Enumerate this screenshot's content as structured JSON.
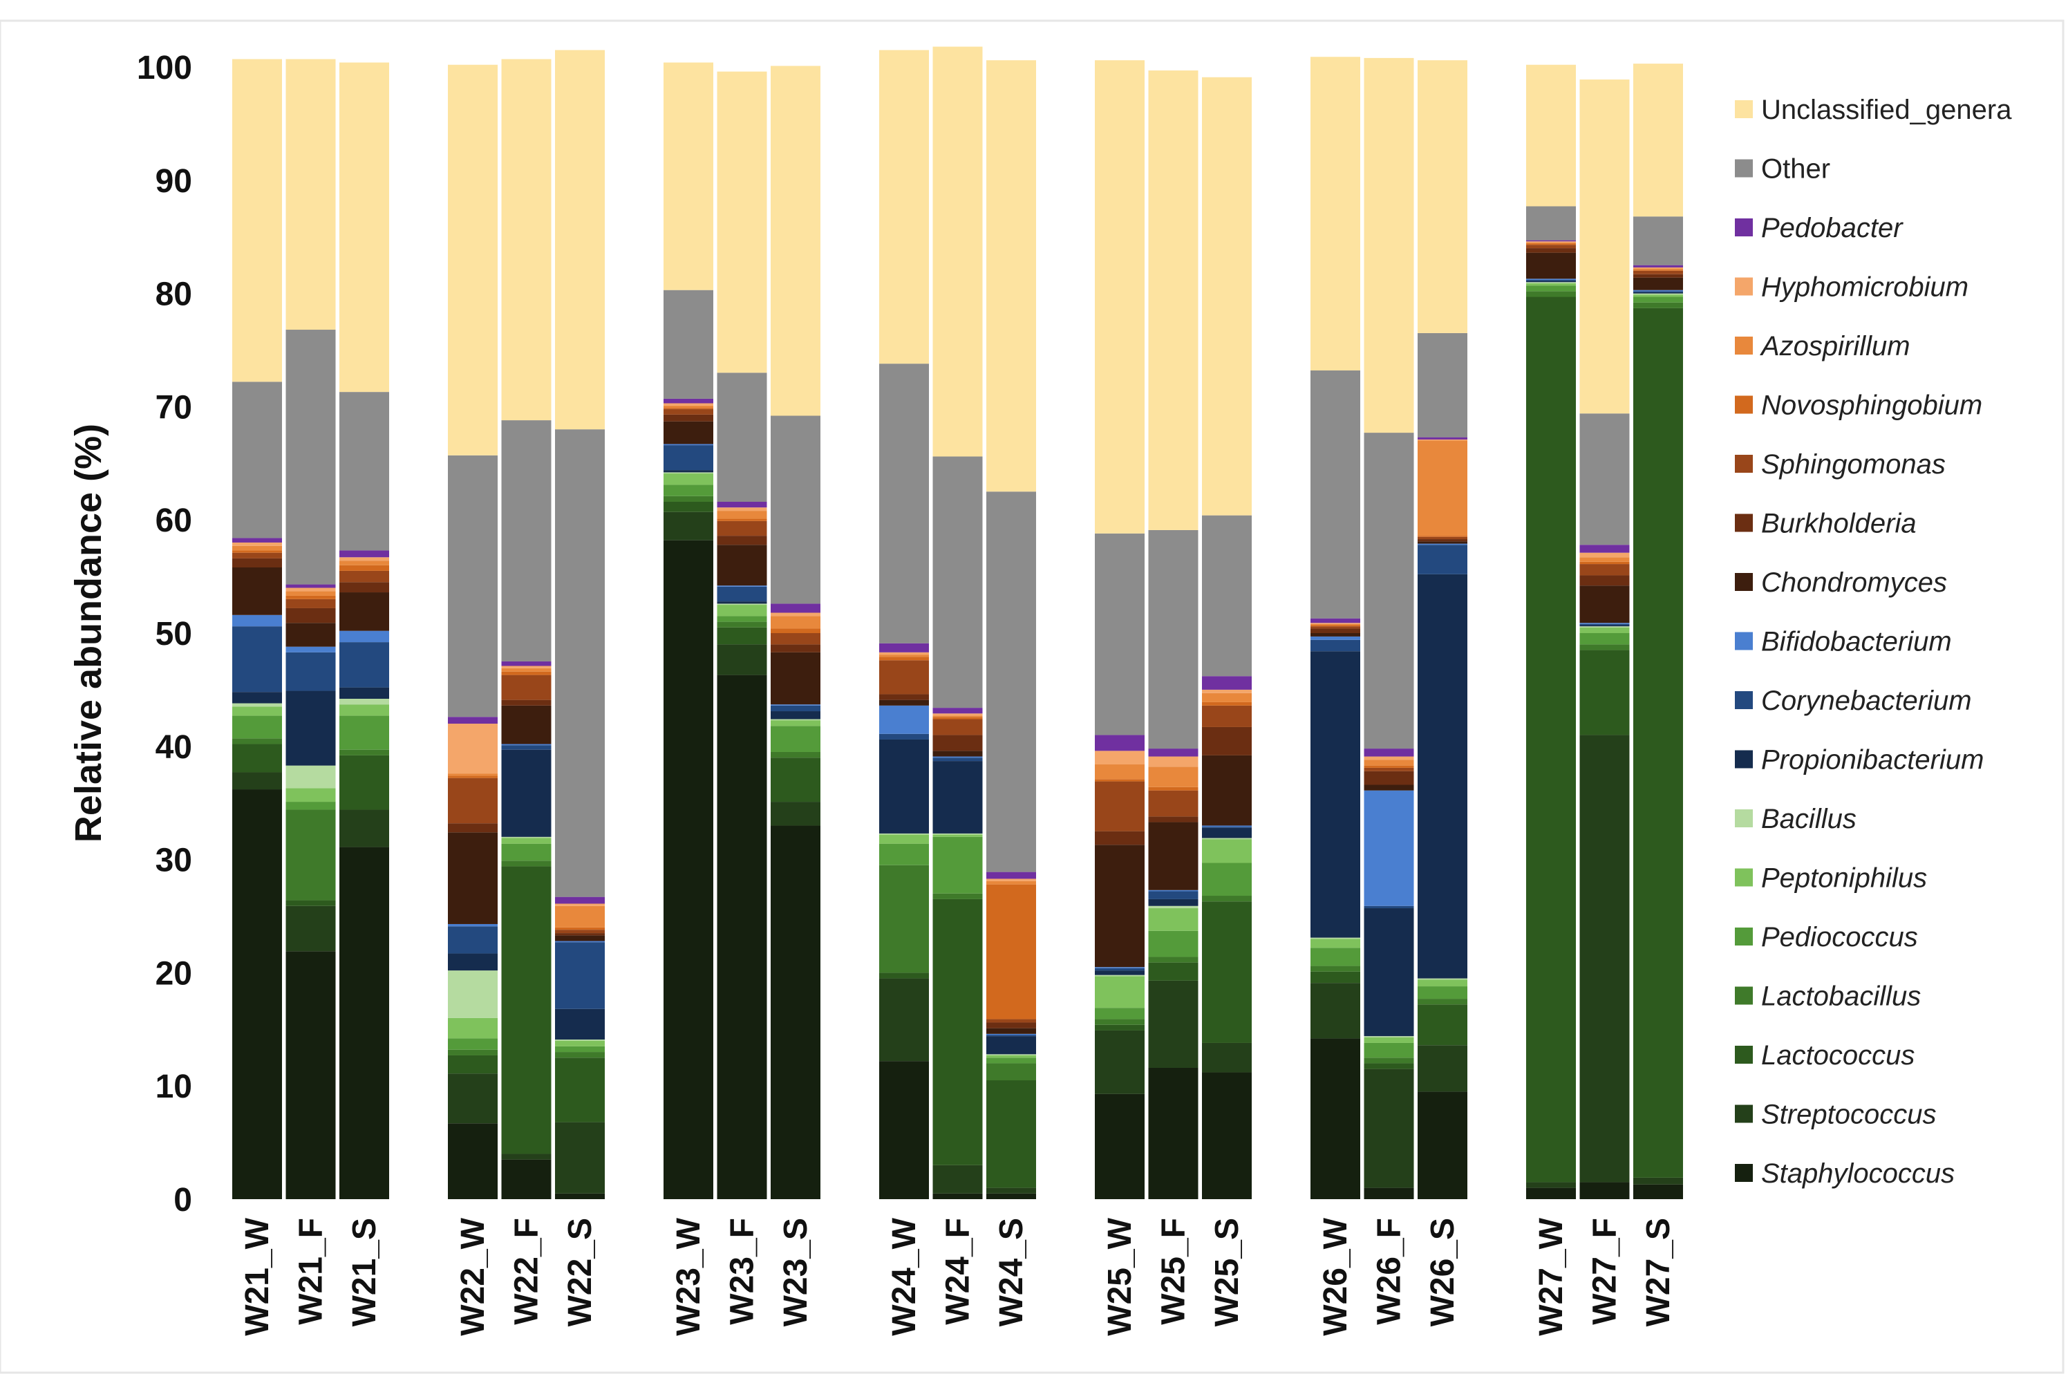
{
  "chart_data": {
    "type": "bar",
    "stacked": true,
    "ylabel": "Relative abundance (%)",
    "ylim": [
      0,
      100
    ],
    "yticks": [
      0,
      10,
      20,
      30,
      40,
      50,
      60,
      70,
      80,
      90,
      100
    ],
    "grid": false,
    "legend_position": "right",
    "categories": [
      "W21_W",
      "W21_F",
      "W21_S",
      "W22_W",
      "W22_F",
      "W22_S",
      "W23_W",
      "W23_F",
      "W23_S",
      "W24_W",
      "W24_F",
      "W24_S",
      "W25_W",
      "W25_F",
      "W25_S",
      "W26_W",
      "W26_F",
      "W26_S",
      "W27_W",
      "W27_F",
      "W27_S"
    ],
    "groups": [
      [
        "W21_W",
        "W21_F",
        "W21_S"
      ],
      [
        "W22_W",
        "W22_F",
        "W22_S"
      ],
      [
        "W23_W",
        "W23_F",
        "W23_S"
      ],
      [
        "W24_W",
        "W24_F",
        "W24_S"
      ],
      [
        "W25_W",
        "W25_F",
        "W25_S"
      ],
      [
        "W26_W",
        "W26_F",
        "W26_S"
      ],
      [
        "W27_W",
        "W27_F",
        "W27_S"
      ]
    ],
    "series": [
      {
        "name": "Staphylococcus",
        "italic": true,
        "color": "#15200f",
        "values": [
          36.2,
          21.9,
          31.1,
          6.7,
          3.5,
          0.5,
          58.2,
          46.3,
          33.0,
          12.2,
          0.5,
          0.5,
          9.3,
          11.6,
          11.2,
          14.2,
          1.0,
          9.5,
          1.0,
          1.5,
          1.3
        ]
      },
      {
        "name": "Streptococcus",
        "italic": true,
        "color": "#24401a",
        "values": [
          1.5,
          4.0,
          3.3,
          4.4,
          0.5,
          6.3,
          2.5,
          2.7,
          2.1,
          7.3,
          2.5,
          0.5,
          5.6,
          7.7,
          2.6,
          4.9,
          10.5,
          4.1,
          0.5,
          39.5,
          0.6
        ]
      },
      {
        "name": "Lactococcus",
        "italic": true,
        "color": "#2d5a1e",
        "values": [
          2.5,
          0.5,
          4.8,
          1.6,
          25.4,
          5.7,
          0.9,
          1.5,
          3.9,
          0.5,
          23.5,
          9.5,
          0.5,
          1.6,
          12.5,
          1.0,
          0.5,
          3.6,
          78.2,
          7.5,
          76.8
        ]
      },
      {
        "name": "Lactobacillus",
        "italic": true,
        "color": "#3f7a2a",
        "values": [
          0.5,
          8.0,
          0.5,
          0.5,
          0.5,
          0.5,
          0.5,
          0.5,
          0.5,
          9.5,
          0.5,
          1.5,
          0.5,
          0.5,
          0.5,
          0.5,
          0.5,
          0.5,
          0.5,
          0.5,
          0.5
        ]
      },
      {
        "name": "Pediococcus",
        "italic": true,
        "color": "#549b3a",
        "values": [
          2.0,
          0.7,
          3.0,
          1.0,
          1.5,
          0.5,
          1.0,
          0.5,
          2.3,
          1.9,
          5.0,
          0.5,
          1.0,
          2.3,
          2.9,
          1.6,
          1.3,
          1.1,
          0.5,
          1.0,
          0.5
        ]
      },
      {
        "name": "Peptoniphilus",
        "italic": true,
        "color": "#7fc25c",
        "values": [
          0.8,
          1.2,
          1.0,
          1.8,
          0.5,
          0.5,
          1.0,
          1.0,
          0.5,
          0.8,
          0.2,
          0.2,
          2.8,
          2.0,
          2.1,
          0.8,
          0.5,
          0.6,
          0.2,
          0.5,
          0.2
        ]
      },
      {
        "name": "Bacillus",
        "italic": true,
        "color": "#b5dba0",
        "values": [
          0.3,
          2.0,
          0.5,
          4.2,
          0.1,
          0.1,
          0.1,
          0.1,
          0.1,
          0.1,
          0.1,
          0.1,
          0.1,
          0.2,
          0.1,
          0.1,
          0.1,
          0.1,
          0.1,
          0.1,
          0.1
        ]
      },
      {
        "name": "Propionibacterium",
        "italic": true,
        "color": "#152c4e",
        "values": [
          1.0,
          6.6,
          1.0,
          1.5,
          7.7,
          2.7,
          0.2,
          0.2,
          0.7,
          8.3,
          6.4,
          1.6,
          0.4,
          0.6,
          0.9,
          25.3,
          11.3,
          35.7,
          0.1,
          0.1,
          0.1
        ]
      },
      {
        "name": "Corynebacterium",
        "italic": true,
        "color": "#23497f",
        "values": [
          5.8,
          3.4,
          4.0,
          2.4,
          0.4,
          5.9,
          2.2,
          1.3,
          0.5,
          0.5,
          0.3,
          0.1,
          0.2,
          0.7,
          0.1,
          1.0,
          0.2,
          2.6,
          0.1,
          0.1,
          0.1
        ]
      },
      {
        "name": "Bifidobacterium",
        "italic": true,
        "color": "#4a7fd0",
        "values": [
          1.0,
          0.5,
          1.0,
          0.2,
          0.1,
          0.1,
          0.1,
          0.1,
          0.1,
          2.5,
          0.1,
          0.1,
          0.1,
          0.1,
          0.1,
          0.3,
          10.2,
          0.1,
          0.1,
          0.1,
          0.1
        ]
      },
      {
        "name": "Chondromyces",
        "italic": true,
        "color": "#3d1e0e",
        "values": [
          4.2,
          2.1,
          3.4,
          8.1,
          3.4,
          0.5,
          2.0,
          3.6,
          4.6,
          0.5,
          0.5,
          0.5,
          10.8,
          6.0,
          6.2,
          0.3,
          0.5,
          0.2,
          2.3,
          3.3,
          1.1
        ]
      },
      {
        "name": "Burkholderia",
        "italic": true,
        "color": "#6b2e12",
        "values": [
          0.8,
          1.3,
          0.9,
          0.8,
          0.5,
          0.2,
          0.6,
          0.8,
          0.7,
          0.5,
          1.4,
          0.5,
          1.2,
          0.5,
          2.5,
          0.4,
          1.2,
          0.2,
          0.4,
          0.9,
          0.3
        ]
      },
      {
        "name": "Sphingomonas",
        "italic": true,
        "color": "#99461a",
        "values": [
          0.5,
          0.8,
          1.0,
          4.0,
          2.2,
          0.3,
          0.5,
          1.3,
          1.0,
          3.0,
          1.4,
          0.3,
          4.4,
          2.3,
          1.9,
          0.2,
          0.3,
          0.2,
          0.3,
          1.0,
          0.3
        ]
      },
      {
        "name": "Novosphingobium",
        "italic": true,
        "color": "#d2691e",
        "values": [
          0.2,
          0.3,
          0.5,
          0.2,
          0.3,
          0.2,
          0.1,
          0.2,
          0.4,
          0.3,
          0.2,
          11.9,
          0.2,
          0.3,
          0.3,
          0.1,
          0.2,
          0.1,
          0.1,
          0.2,
          0.1
        ]
      },
      {
        "name": "Azospirillum",
        "italic": true,
        "color": "#e8883c",
        "values": [
          0.4,
          0.4,
          0.4,
          0.2,
          0.3,
          1.9,
          0.2,
          0.7,
          1.1,
          0.2,
          0.1,
          0.3,
          1.3,
          1.8,
          0.8,
          0.1,
          0.5,
          8.4,
          0.1,
          0.4,
          0.1
        ]
      },
      {
        "name": "Hyphomicrobium",
        "italic": true,
        "color": "#f4a66a",
        "values": [
          0.3,
          0.3,
          0.3,
          4.4,
          0.2,
          0.2,
          0.2,
          0.3,
          0.3,
          0.2,
          0.2,
          0.2,
          1.2,
          0.9,
          0.3,
          0.1,
          0.3,
          0.1,
          0.1,
          0.4,
          0.1
        ]
      },
      {
        "name": "Pedobacter",
        "italic": true,
        "color": "#7030a0",
        "values": [
          0.4,
          0.3,
          0.6,
          0.6,
          0.4,
          0.6,
          0.4,
          0.5,
          0.8,
          0.8,
          0.5,
          0.6,
          1.4,
          0.7,
          1.2,
          0.4,
          0.7,
          0.2,
          0.1,
          0.7,
          0.2
        ]
      },
      {
        "name": "Other",
        "italic": false,
        "color": "#8c8c8c",
        "values": [
          13.8,
          22.5,
          14.0,
          23.1,
          21.3,
          41.3,
          9.6,
          11.4,
          16.6,
          24.7,
          22.2,
          33.6,
          17.8,
          19.3,
          14.2,
          21.9,
          27.9,
          9.2,
          3.0,
          11.6,
          4.3
        ]
      },
      {
        "name": "Unclassified_genera",
        "italic": false,
        "color": "#fde3a0",
        "values": [
          28.5,
          23.9,
          29.1,
          34.5,
          31.9,
          33.5,
          20.1,
          26.6,
          30.9,
          27.7,
          36.2,
          38.1,
          41.8,
          40.6,
          38.7,
          27.7,
          33.1,
          24.1,
          12.5,
          29.5,
          13.5
        ]
      }
    ]
  }
}
